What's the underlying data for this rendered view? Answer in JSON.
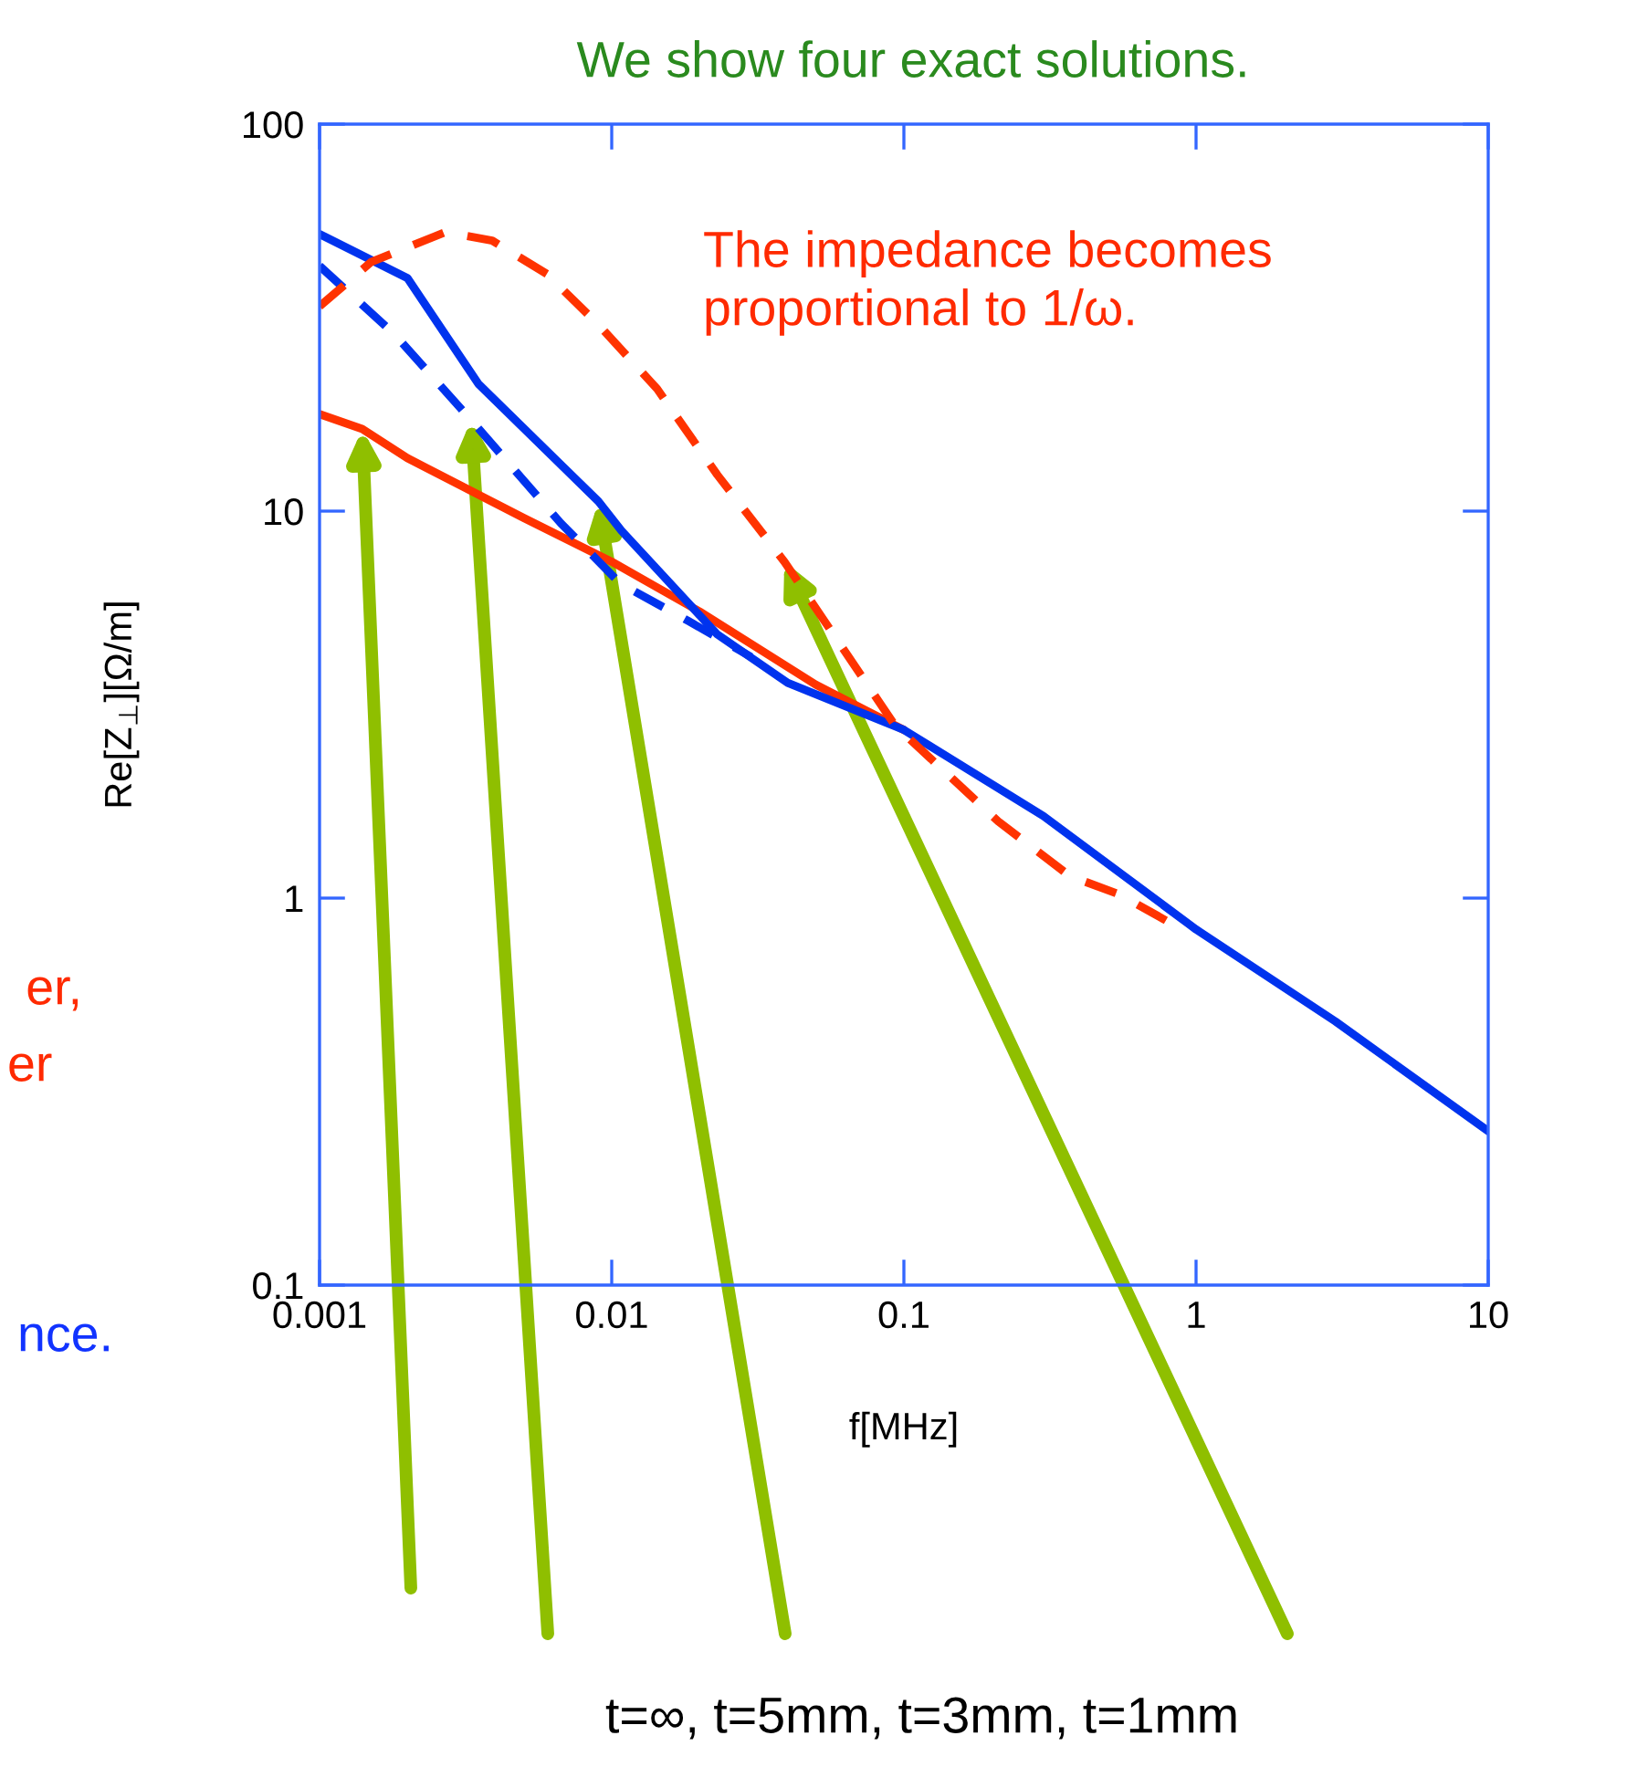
{
  "chart_data": {
    "type": "line",
    "title": "We show four exact solutions.",
    "xlabel": "f[MHz]",
    "ylabel": "Re[Z$_{⊥}$][Ω/m]",
    "log": "xy",
    "xlim": [
      0.001,
      10
    ],
    "ylim": [
      0.1,
      100
    ],
    "xticks": [
      0.001,
      0.01,
      0.1,
      1,
      10
    ],
    "yticks": [
      0.1,
      1,
      10,
      100
    ],
    "grid": false,
    "series": [
      {
        "color": "#ff3300",
        "line_style": "solid",
        "x": [
          0.001,
          0.0014,
          0.002,
          0.005,
          0.01,
          0.02,
          0.05,
          0.1
        ],
        "values": [
          17.8,
          16.3,
          13.7,
          9.6,
          7.4,
          5.5,
          3.56,
          2.72
        ]
      },
      {
        "color": "#0033ee",
        "line_style": "dashed",
        "x": [
          0.001,
          0.0018,
          0.0033,
          0.0067,
          0.0107,
          0.0183,
          0.03
        ],
        "values": [
          43,
          28.7,
          17.2,
          9.3,
          6.5,
          5.2,
          4.2
        ]
      },
      {
        "color": "#0033ee",
        "line_style": "solid",
        "x": [
          0.001,
          0.002,
          0.0035,
          0.009,
          0.0108,
          0.023,
          0.04,
          0.1,
          0.3,
          1,
          3,
          10
        ],
        "values": [
          52,
          40,
          21.3,
          10.6,
          8.9,
          4.8,
          3.6,
          2.72,
          1.63,
          0.83,
          0.48,
          0.25
        ]
      },
      {
        "color": "#ff3300",
        "line_style": "dashed",
        "x": [
          0.001,
          0.0015,
          0.0027,
          0.0039,
          0.006,
          0.0089,
          0.0143,
          0.023,
          0.039,
          0.093,
          0.21,
          0.37,
          0.55,
          0.8
        ],
        "values": [
          33.8,
          44,
          52.6,
          50,
          41,
          30.6,
          20.7,
          12.4,
          7.4,
          2.8,
          1.58,
          1.14,
          1.02,
          0.87
        ]
      }
    ],
    "annotations": [
      "The impedance becomes\nproportional to 1/ω.",
      "er,",
      "er",
      "nce.",
      "t=∞, t=5mm, t=3mm, t=1mm"
    ]
  }
}
